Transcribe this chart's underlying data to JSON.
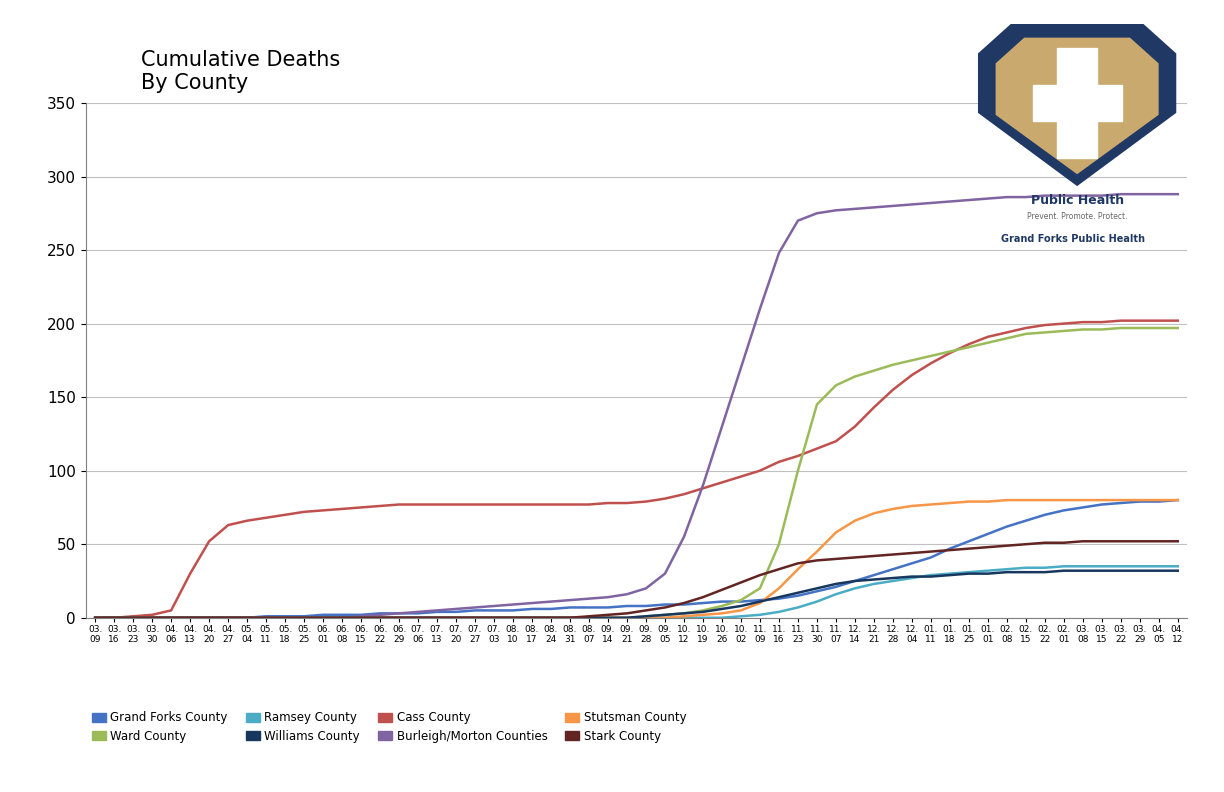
{
  "title": "Cumulative Deaths\nBy County",
  "ylim": [
    0,
    350
  ],
  "yticks": [
    0,
    50,
    100,
    150,
    200,
    250,
    300,
    350
  ],
  "counties": {
    "Grand Forks County": {
      "color": "#4472C4"
    },
    "Cass County": {
      "color": "#C0504D"
    },
    "Ward County": {
      "color": "#9BBB59"
    },
    "Burleigh/Morton Counties": {
      "color": "#8064A2"
    },
    "Ramsey County": {
      "color": "#4BACC6"
    },
    "Stutsman County": {
      "color": "#F79646"
    },
    "Williams County": {
      "color": "#17375E"
    },
    "Stark County": {
      "color": "#632523"
    }
  },
  "legend_order": [
    [
      "Grand Forks County",
      "Ward County",
      "Ramsey County",
      "Williams County"
    ],
    [
      "Cass County",
      "Burleigh/Morton Counties",
      "Stutsman County",
      "Stark County"
    ]
  ],
  "x_labels_row1": [
    "03.",
    "03.",
    "03.",
    "03.",
    "04.",
    "04.",
    "04.",
    "04.",
    "05.",
    "05.",
    "05.",
    "05.",
    "06.",
    "06.",
    "06.",
    "06.",
    "06.",
    "07.",
    "07.",
    "07.",
    "07.",
    "07.",
    "08.",
    "08.",
    "08.",
    "08.",
    "08.",
    "09.",
    "09.",
    "09.",
    "09.",
    "10.",
    "10.",
    "10.",
    "10.",
    "11.",
    "11.",
    "11.",
    "11.",
    "11.",
    "12.",
    "12.",
    "12.",
    "12.",
    "01.",
    "01.",
    "01.",
    "01.",
    "02.",
    "02.",
    "02.",
    "02.",
    "03.",
    "03.",
    "03.",
    "03.",
    "04.",
    "04."
  ],
  "x_labels_row2": [
    "09",
    "16",
    "23",
    "30",
    "06",
    "13",
    "20",
    "27",
    "04",
    "11",
    "18",
    "25",
    "01",
    "08",
    "15",
    "22",
    "29",
    "06",
    "13",
    "20",
    "27",
    "03",
    "10",
    "17",
    "24",
    "31",
    "07",
    "14",
    "21",
    "28",
    "05",
    "12",
    "19",
    "26",
    "02",
    "09",
    "16",
    "23",
    "30",
    "07",
    "14",
    "21",
    "28",
    "04",
    "11",
    "18",
    "25",
    "01",
    "08",
    "15",
    "22",
    "01",
    "08",
    "15",
    "22",
    "29",
    "05",
    "12"
  ],
  "background_color": "#FFFFFF",
  "grid_color": "#C0C0C0",
  "shield_outer": "#1F3864",
  "shield_inner": "#C9A96E",
  "ph_text_color": "#1F3864",
  "ph_subtitle_color": "#666666",
  "ph_text": "Public Health",
  "ph_subtitle": "Prevent. Promote. Protect.",
  "ph_org": "Grand Forks Public Health"
}
